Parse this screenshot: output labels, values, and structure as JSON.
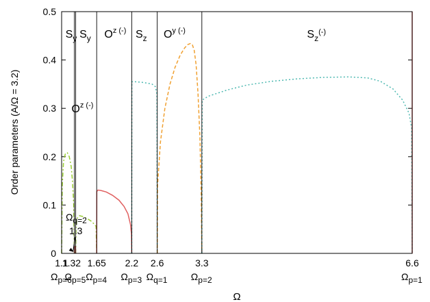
{
  "chart_data": {
    "type": "line",
    "xlabel": "Ω",
    "ylabel": "Order parameters (A/Ω = 3.2)",
    "xlim": [
      1.1,
      6.6
    ],
    "ylim": [
      0,
      0.5
    ],
    "yticks": [
      "0",
      "0.1",
      "0.2",
      "0.3",
      "0.4",
      "0.5"
    ],
    "xticks": [
      {
        "x": 1.1,
        "label": "1.1",
        "sub_base": "Ω",
        "sub": "p=6"
      },
      {
        "x": 1.32,
        "label": "1.32",
        "sub_base": "Ω",
        "sub": "p=5"
      },
      {
        "x": 1.65,
        "label": "1.65",
        "sub_base": "Ω",
        "sub": "p=4"
      },
      {
        "x": 2.2,
        "label": "2.2",
        "sub_base": "Ω",
        "sub": "p=3"
      },
      {
        "x": 2.6,
        "label": "2.6",
        "sub_base": "Ω",
        "sub": "q=1"
      },
      {
        "x": 3.3,
        "label": "3.3",
        "sub_base": "Ω",
        "sub": "p=2"
      },
      {
        "x": 6.6,
        "label": "6.6",
        "sub_base": "Ω",
        "sub": "p=1"
      }
    ],
    "boundaries": [
      1.3,
      1.32,
      1.65,
      2.2,
      2.6,
      3.3,
      6.6
    ],
    "regions": [
      {
        "base": "S",
        "sub": "y",
        "sup": "",
        "x": 1.16,
        "y": 0.455
      },
      {
        "base": "S",
        "sub": "y",
        "sup": "",
        "x": 1.38,
        "y": 0.455
      },
      {
        "base": "O",
        "sub": "",
        "sup": "z (-)",
        "x": 1.77,
        "y": 0.455
      },
      {
        "base": "S",
        "sub": "z",
        "sup": "",
        "x": 2.26,
        "y": 0.455
      },
      {
        "base": "O",
        "sub": "",
        "sup": "y (-)",
        "x": 2.7,
        "y": 0.455
      },
      {
        "base": "S",
        "sub": "z",
        "sup": "(-)",
        "x": 4.95,
        "y": 0.455
      },
      {
        "base": "O",
        "sub": "",
        "sup": "z (-)",
        "x": 1.255,
        "y": 0.3
      }
    ],
    "annotation": {
      "base": "Ω",
      "sub": "q=2",
      "value": "1.3",
      "x": 1.3,
      "y": 0.0
    },
    "series": [
      {
        "color": "#99cc33",
        "dash": "6 3 2 3",
        "x": [
          1.1,
          1.11,
          1.13,
          1.16,
          1.19,
          1.22,
          1.25,
          1.27,
          1.29,
          1.3
        ],
        "y": [
          0,
          0.14,
          0.19,
          0.207,
          0.208,
          0.2,
          0.18,
          0.15,
          0.1,
          0
        ]
      },
      {
        "color": "#99cc33",
        "dash": "6 3 2 3",
        "x": [
          1.32,
          1.325,
          1.34,
          1.38,
          1.44,
          1.5,
          1.56,
          1.6,
          1.64,
          1.65
        ],
        "y": [
          0,
          0.055,
          0.072,
          0.078,
          0.076,
          0.072,
          0.067,
          0.062,
          0.056,
          0
        ]
      },
      {
        "color": "#e06060",
        "dash": "",
        "x": [
          1.3,
          1.301,
          1.31,
          1.319,
          1.32
        ],
        "y": [
          0,
          0.013,
          0.014,
          0.013,
          0
        ]
      },
      {
        "color": "#e06060",
        "dash": "",
        "x": [
          1.65,
          1.652,
          1.67,
          1.72,
          1.8,
          1.9,
          2.0,
          2.08,
          2.14,
          2.18,
          2.195,
          2.2
        ],
        "y": [
          0,
          0.128,
          0.131,
          0.13,
          0.127,
          0.12,
          0.11,
          0.097,
          0.082,
          0.06,
          0.04,
          0
        ]
      },
      {
        "color": "#4cb8b0",
        "dash": "2 3",
        "x": [
          2.2,
          2.202,
          2.25,
          2.35,
          2.45,
          2.52,
          2.57,
          2.595,
          2.6
        ],
        "y": [
          0,
          0.355,
          0.355,
          0.354,
          0.352,
          0.35,
          0.345,
          0.33,
          0
        ]
      },
      {
        "color": "#f0a030",
        "dash": "5 3",
        "x": [
          2.6,
          2.605,
          2.65,
          2.72,
          2.8,
          2.88,
          2.96,
          3.03,
          3.08,
          3.12,
          3.15,
          3.18,
          3.21,
          3.24,
          3.27,
          3.29,
          3.3
        ],
        "y": [
          0,
          0.14,
          0.23,
          0.3,
          0.35,
          0.385,
          0.41,
          0.425,
          0.432,
          0.434,
          0.432,
          0.42,
          0.39,
          0.33,
          0.24,
          0.12,
          0
        ]
      },
      {
        "color": "#4cb8b0",
        "dash": "2 3",
        "x": [
          3.3,
          3.305,
          3.4,
          3.7,
          4.0,
          4.4,
          4.8,
          5.2,
          5.6,
          5.9,
          6.1,
          6.3,
          6.45,
          6.55,
          6.59,
          6.6
        ],
        "y": [
          0,
          0.317,
          0.325,
          0.338,
          0.348,
          0.356,
          0.361,
          0.364,
          0.365,
          0.363,
          0.356,
          0.34,
          0.317,
          0.29,
          0.26,
          0
        ]
      },
      {
        "color": "#e06060",
        "dash": "",
        "x": [
          6.6,
          6.6
        ],
        "y": [
          0,
          0.5
        ]
      }
    ]
  }
}
